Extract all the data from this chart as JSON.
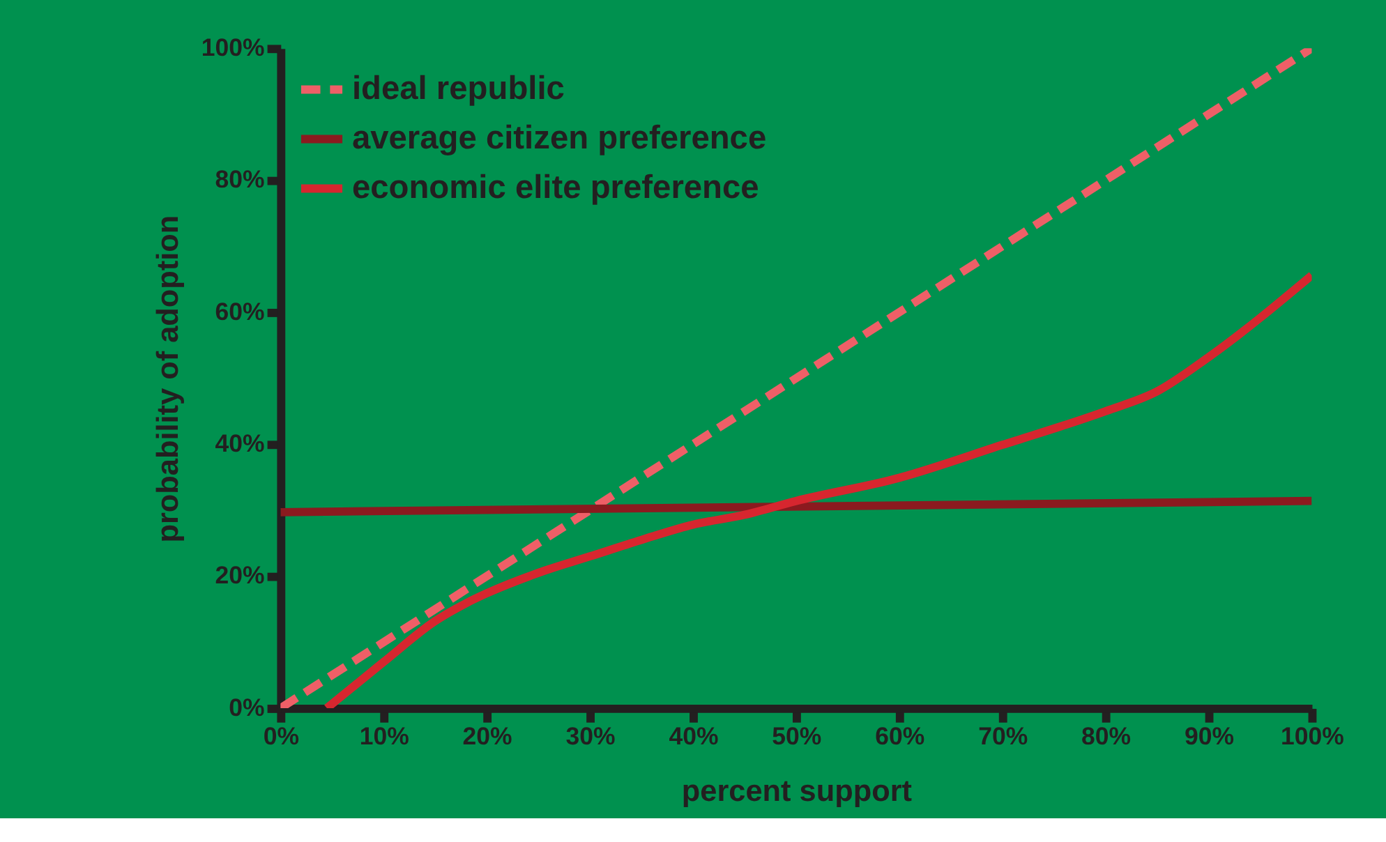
{
  "chart_data": {
    "type": "line",
    "xlabel": "percent support",
    "ylabel": "probability of adoption",
    "xlim": [
      0,
      100
    ],
    "ylim": [
      0,
      100
    ],
    "xticks": [
      {
        "value": 0,
        "label": "0%"
      },
      {
        "value": 10,
        "label": "10%"
      },
      {
        "value": 20,
        "label": "20%"
      },
      {
        "value": 30,
        "label": "30%"
      },
      {
        "value": 40,
        "label": "40%"
      },
      {
        "value": 50,
        "label": "50%"
      },
      {
        "value": 60,
        "label": "60%"
      },
      {
        "value": 70,
        "label": "70%"
      },
      {
        "value": 80,
        "label": "80%"
      },
      {
        "value": 90,
        "label": "90%"
      },
      {
        "value": 100,
        "label": "100%"
      }
    ],
    "yticks": [
      {
        "value": 0,
        "label": "0%"
      },
      {
        "value": 20,
        "label": "20%"
      },
      {
        "value": 40,
        "label": "40%"
      },
      {
        "value": 60,
        "label": "60%"
      },
      {
        "value": 80,
        "label": "80%"
      },
      {
        "value": 100,
        "label": "100%"
      }
    ],
    "grid": false,
    "legend": "top left",
    "marker": "none",
    "series": [
      {
        "name": "ideal republic",
        "color": "#ef5f67",
        "line_style": "dashed",
        "x": [
          0,
          100
        ],
        "values": [
          0,
          100
        ]
      },
      {
        "name": "average citizen preference",
        "color": "#8b1a1f",
        "line_style": "solid",
        "x": [
          0,
          100
        ],
        "values": [
          29.7,
          31.4
        ]
      },
      {
        "name": "economic elite preference",
        "color": "#d7262f",
        "line_style": "solid",
        "x": [
          4.5,
          10,
          15,
          18,
          20,
          25,
          30,
          35,
          40,
          45,
          50,
          60,
          70,
          80,
          85,
          90,
          100
        ],
        "values": [
          0,
          7,
          13.2,
          15.9,
          17.4,
          20.5,
          23,
          25.5,
          27.8,
          29.3,
          31.4,
          34.9,
          39.9,
          45,
          48,
          53.2,
          65.6
        ]
      }
    ]
  }
}
